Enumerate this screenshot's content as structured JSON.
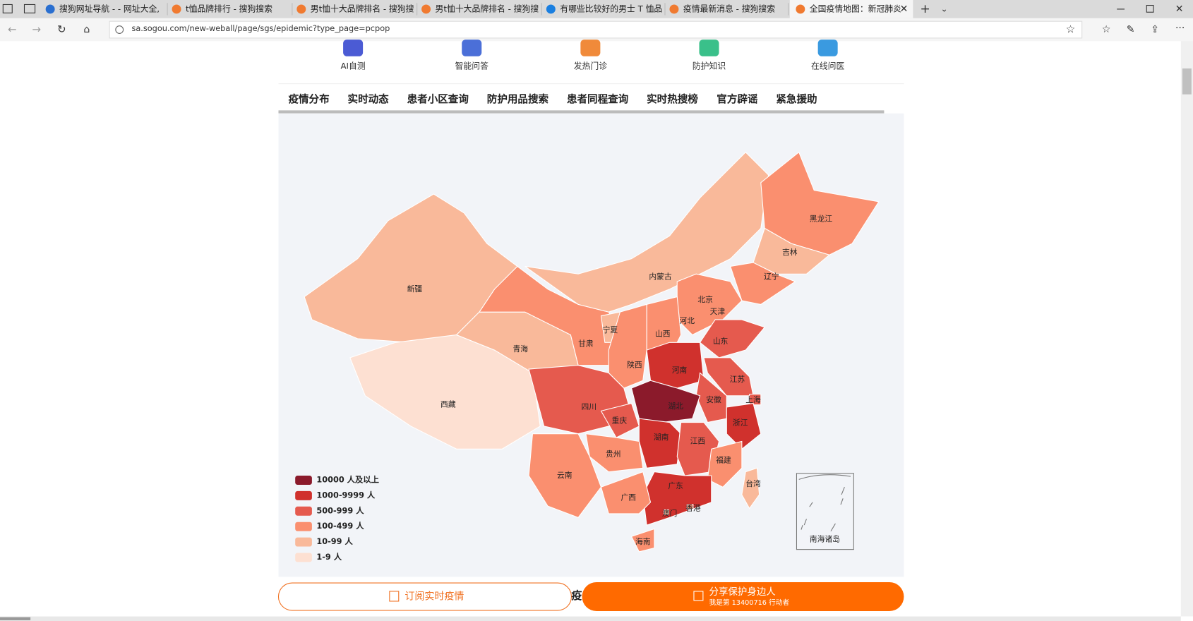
{
  "browser": {
    "tabs": [
      "搜狗网址导航 - - 网址大全,",
      "t恤品牌排行 - 搜狗搜索",
      "男t恤十大品牌排名 - 搜狗搜",
      "男t恤十大品牌排名 - 搜狗搜",
      "有哪些比较好的男士 T 恤品",
      "疫情最新消息 - 搜狗搜索",
      "全国疫情地图：新冠肺炎"
    ],
    "url": "sa.sogou.com/new-weball/page/sgs/epidemic?type_page=pcpop"
  },
  "services": [
    "AI自测",
    "智能问答",
    "发热门诊",
    "防护知识",
    "在线问医"
  ],
  "nav": [
    "疫情分布",
    "实时动态",
    "患者小区查询",
    "防护用品搜索",
    "患者同程查询",
    "实时热搜榜",
    "官方辟谣",
    "紧急援助"
  ],
  "map": {
    "provinces": [
      {
        "name": "新疆",
        "color": "#f9b99a"
      },
      {
        "name": "西藏",
        "color": "#fde0d2"
      },
      {
        "name": "青海",
        "color": "#f9b99a"
      },
      {
        "name": "甘肃",
        "color": "#fa8f6f"
      },
      {
        "name": "内蒙古",
        "color": "#f9b99a"
      },
      {
        "name": "黑龙江",
        "color": "#fa8f6f"
      },
      {
        "name": "吉林",
        "color": "#f9b99a"
      },
      {
        "name": "辽宁",
        "color": "#fa8f6f"
      },
      {
        "name": "北京",
        "color": "#fa8f6f"
      },
      {
        "name": "天津",
        "color": "#fa8f6f"
      },
      {
        "name": "河北",
        "color": "#fa8f6f"
      },
      {
        "name": "山西",
        "color": "#fa8f6f"
      },
      {
        "name": "宁夏",
        "color": "#f9b99a"
      },
      {
        "name": "陕西",
        "color": "#fa8f6f"
      },
      {
        "name": "山东",
        "color": "#e55a4e"
      },
      {
        "name": "河南",
        "color": "#d0312d"
      },
      {
        "name": "江苏",
        "color": "#e55a4e"
      },
      {
        "name": "安徽",
        "color": "#e55a4e"
      },
      {
        "name": "上海",
        "color": "#e55a4e"
      },
      {
        "name": "湖北",
        "color": "#8b1a2b"
      },
      {
        "name": "四川",
        "color": "#e55a4e"
      },
      {
        "name": "重庆",
        "color": "#e55a4e"
      },
      {
        "name": "浙江",
        "color": "#d0312d"
      },
      {
        "name": "湖南",
        "color": "#d0312d"
      },
      {
        "name": "江西",
        "color": "#e55a4e"
      },
      {
        "name": "贵州",
        "color": "#fa8f6f"
      },
      {
        "name": "云南",
        "color": "#fa8f6f"
      },
      {
        "name": "福建",
        "color": "#fa8f6f"
      },
      {
        "name": "广东",
        "color": "#d0312d"
      },
      {
        "name": "广西",
        "color": "#fa8f6f"
      },
      {
        "name": "海南",
        "color": "#fa8f6f"
      },
      {
        "name": "台湾",
        "color": "#f9b99a"
      },
      {
        "name": "香港",
        "color": "#fa8f6f"
      },
      {
        "name": "澳门",
        "color": "#f9b99a"
      }
    ],
    "south_sea": "南海诸岛",
    "legend": [
      {
        "label": "10000 人及以上",
        "color": "#8b1a2b"
      },
      {
        "label": "1000-9999 人",
        "color": "#d0312d"
      },
      {
        "label": "500-999 人",
        "color": "#e55a4e"
      },
      {
        "label": "100-499 人",
        "color": "#fa8f6f"
      },
      {
        "label": "10-99 人",
        "color": "#f9b99a"
      },
      {
        "label": "1-9 人",
        "color": "#fde0d2"
      }
    ]
  },
  "buttons": {
    "subscribe": "订阅实时疫情",
    "middle": "疫",
    "share": "分享保护身边人",
    "share_note": "我是第 13400716 行动者"
  }
}
